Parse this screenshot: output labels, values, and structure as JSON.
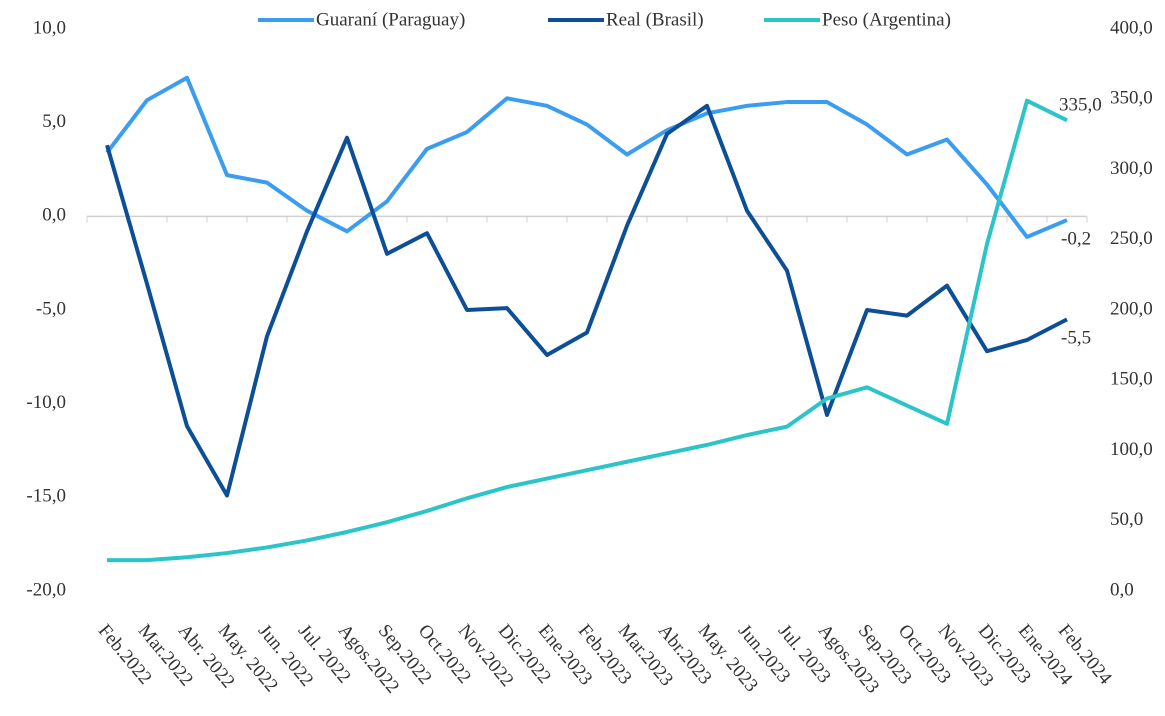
{
  "chart_data": {
    "type": "line",
    "categories": [
      "Feb.2022",
      "Mar.2022",
      "Abr. 2022",
      "May. 2022",
      "Jun. 2022",
      "Jul. 2022",
      "Agos.2022",
      "Sep.2022",
      "Oct.2022",
      "Nov.2022",
      "Dic.2022",
      "Ene.2023",
      "Feb.2023",
      "Mar.2023",
      "Abr.2023",
      "May. 2023",
      "Jun.2023",
      "Jul. 2023",
      "Agos.2023",
      "Sep.2023",
      "Oct.2023",
      "Nov.2023",
      "Dic.2023",
      "Ene.2024",
      "Feb.2024"
    ],
    "series": [
      {
        "name": "Guaraní (Paraguay)",
        "color": "#3b9df0",
        "values": [
          3.4,
          6.2,
          7.4,
          2.2,
          1.8,
          0.3,
          -0.8,
          0.8,
          3.6,
          4.5,
          6.3,
          5.9,
          4.9,
          3.3,
          4.6,
          5.5,
          5.9,
          6.1,
          6.1,
          4.9,
          3.3,
          4.1,
          1.7,
          -1.1,
          -0.2
        ],
        "value_labels": [
          null,
          null,
          null,
          null,
          null,
          null,
          null,
          null,
          null,
          null,
          null,
          null,
          null,
          null,
          null,
          null,
          null,
          null,
          null,
          null,
          null,
          null,
          null,
          null,
          "-0,2"
        ]
      },
      {
        "name": "Real (Brasil)",
        "color": "#0d4f96",
        "values": [
          3.8,
          -3.6,
          -11.2,
          -14.9,
          -6.4,
          -0.8,
          4.2,
          -2.0,
          -0.9,
          -5.0,
          -4.9,
          -7.4,
          -6.2,
          -0.5,
          4.4,
          5.9,
          0.3,
          -2.9,
          -10.6,
          -5.0,
          -5.3,
          -3.7,
          -7.2,
          -6.6,
          -5.5
        ],
        "value_labels": [
          null,
          null,
          null,
          null,
          null,
          null,
          null,
          null,
          null,
          null,
          null,
          null,
          null,
          null,
          null,
          null,
          null,
          null,
          null,
          null,
          null,
          null,
          null,
          null,
          "-5,5"
        ]
      },
      {
        "name": "Peso (Argentina)",
        "color": "#2cc4c9",
        "axis": "y2",
        "values": [
          22,
          22,
          24,
          27,
          31,
          36,
          42,
          49,
          57,
          66,
          74,
          80,
          86,
          92,
          98,
          104,
          111,
          117,
          137,
          145,
          132,
          119,
          247,
          349,
          335
        ],
        "value_labels": [
          null,
          null,
          null,
          null,
          null,
          null,
          null,
          null,
          null,
          null,
          null,
          null,
          null,
          null,
          null,
          null,
          null,
          null,
          null,
          null,
          null,
          null,
          null,
          null,
          "335,0"
        ]
      }
    ],
    "ylim": [
      -20,
      10
    ],
    "yticks": [
      {
        "value": -20,
        "label": "-20,0"
      },
      {
        "value": -15,
        "label": "-15,0"
      },
      {
        "value": -10,
        "label": "-10,0"
      },
      {
        "value": -5,
        "label": "-5,0"
      },
      {
        "value": 0,
        "label": "0,0"
      },
      {
        "value": 5,
        "label": "5,0"
      },
      {
        "value": 10,
        "label": "10,0"
      }
    ],
    "y2lim": [
      0,
      400
    ],
    "y2ticks": [
      {
        "value": 0,
        "label": "0,0"
      },
      {
        "value": 50,
        "label": "50,0"
      },
      {
        "value": 100,
        "label": "100,0"
      },
      {
        "value": 150,
        "label": "150,0"
      },
      {
        "value": 200,
        "label": "200,0"
      },
      {
        "value": 250,
        "label": "250,0"
      },
      {
        "value": 300,
        "label": "300,0"
      },
      {
        "value": 350,
        "label": "350,0"
      },
      {
        "value": 400,
        "label": "400,0"
      }
    ],
    "legend": "top"
  }
}
